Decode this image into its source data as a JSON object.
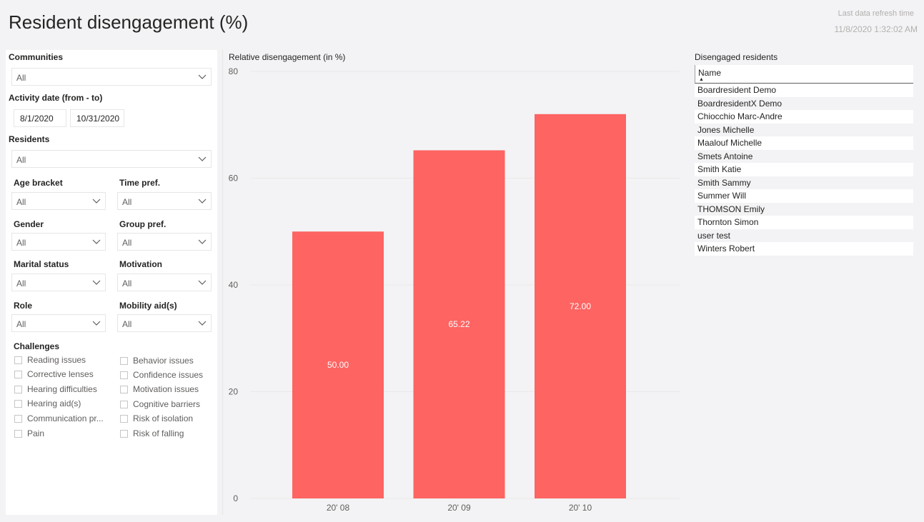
{
  "header": {
    "title": "Resident disengagement (%)",
    "refresh_label": "Last data refresh time",
    "refresh_value": "11/8/2020 1:32:02 AM"
  },
  "filters": {
    "communities": {
      "label": "Communities",
      "value": "All"
    },
    "activity_date": {
      "label": "Activity date (from - to)",
      "from": "8/1/2020",
      "to": "10/31/2020"
    },
    "residents": {
      "label": "Residents",
      "value": "All"
    },
    "age_bracket": {
      "label": "Age bracket",
      "value": "All"
    },
    "time_pref": {
      "label": "Time pref.",
      "value": "All"
    },
    "gender": {
      "label": "Gender",
      "value": "All"
    },
    "group_pref": {
      "label": "Group pref.",
      "value": "All"
    },
    "marital_status": {
      "label": "Marital status",
      "value": "All"
    },
    "motivation": {
      "label": "Motivation",
      "value": "All"
    },
    "role": {
      "label": "Role",
      "value": "All"
    },
    "mobility_aids": {
      "label": "Mobility aid(s)",
      "value": "All"
    },
    "challenges": {
      "label": "Challenges",
      "left": [
        "Reading issues",
        "Corrective lenses",
        "Hearing difficulties",
        "Hearing aid(s)",
        "Communication pr...",
        "Pain"
      ],
      "right": [
        "Behavior issues",
        "Confidence issues",
        "Motivation issues",
        "Cognitive barriers",
        "Risk of isolation",
        "Risk of falling"
      ]
    }
  },
  "chart_data": {
    "type": "bar",
    "title": "Relative disengagement (in %)",
    "categories": [
      "20' 08",
      "20' 09",
      "20' 10"
    ],
    "values": [
      50.0,
      65.22,
      72.0
    ],
    "data_labels": [
      "50.00",
      "65.22",
      "72.00"
    ],
    "ylim": [
      0,
      80
    ],
    "yticks": [
      0,
      20,
      40,
      60,
      80
    ],
    "bar_color": "#fd6462",
    "grid": true
  },
  "table": {
    "title": "Disengaged residents",
    "column": "Name",
    "sort_glyph": "▲",
    "rows": [
      "Boardresident Demo",
      "BoardresidentX Demo",
      "Chiocchio Marc-Andre",
      "Jones Michelle",
      "Maalouf Michelle",
      "Smets Antoine",
      "Smith Katie",
      "Smith Sammy",
      "Summer Will",
      "THOMSON Emily",
      "Thornton Simon",
      "user test",
      "Winters Robert"
    ]
  }
}
